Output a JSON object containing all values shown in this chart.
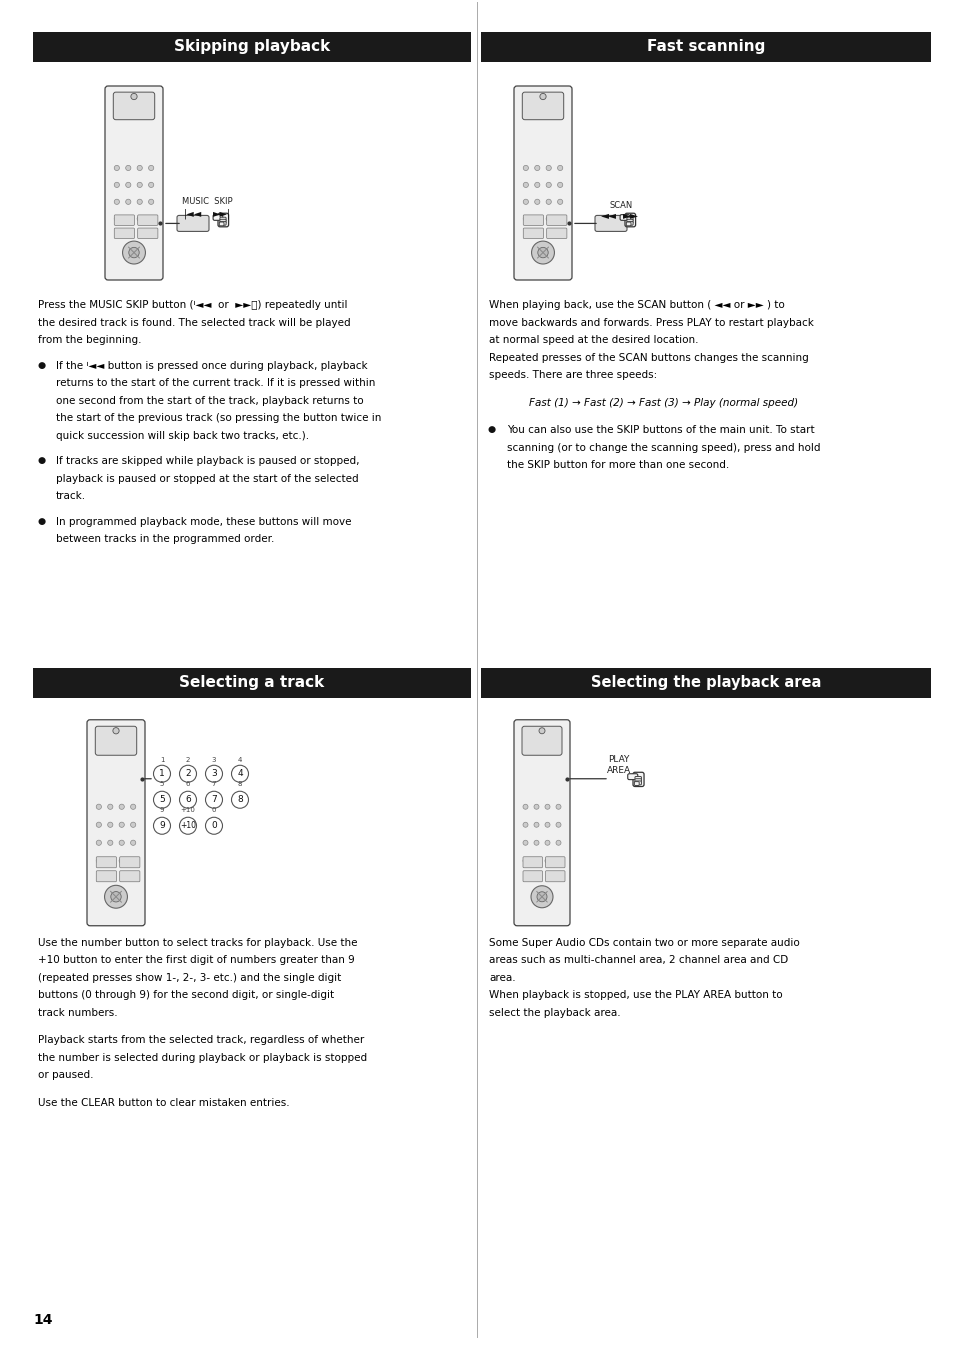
{
  "page_bg": "#ffffff",
  "header_bg": "#1a1a1a",
  "header_text_color": "#ffffff",
  "body_text_color": "#000000",
  "page_width": 9.54,
  "page_height": 13.49,
  "skip_body_para1": "Press the MUSIC SKIP button (ᑊ◄◄  or  ►►ᑋ) repeatedly until\nthe desired track is found. The selected track will be played\nfrom the beginning.",
  "skip_bullet1": "If the ᑊ◄◄ button is pressed once during playback, playback\nreturns to the start of the current track. If it is pressed within\none second from the start of the track, playback returns to\nthe start of the previous track (so pressing the button twice in\nquick succession will skip back two tracks, etc.).",
  "skip_bullet2": "If tracks are skipped while playback is paused or stopped,\nplayback is paused or stopped at the start of the selected\ntrack.",
  "skip_bullet3": "In programmed playback mode, these buttons will move\nbetween tracks in the programmed order.",
  "scan_body_para1": "When playing back, use the SCAN button ( ◄◄ or ►► ) to\nmove backwards and forwards. Press PLAY to restart playback\nat normal speed at the desired location.\nRepeated presses of the SCAN buttons changes the scanning\nspeeds. There are three speeds:",
  "scan_speeds": "Fast (1) → Fast (2) → Fast (3) → Play (normal speed)",
  "scan_bullet1": "You can also use the SKIP buttons of the main unit. To start\nscanning (or to change the scanning speed), press and hold\nthe SKIP button for more than one second.",
  "track_body_para1": "Use the number button to select tracks for playback. Use the\n+10 button to enter the first digit of numbers greater than 9\n(repeated presses show 1-, 2-, 3- etc.) and the single digit\nbuttons (0 through 9) for the second digit, or single-digit\ntrack numbers.",
  "track_body_para2": "Playback starts from the selected track, regardless of whether\nthe number is selected during playback or playback is stopped\nor paused.",
  "track_body_para3": "Use the CLEAR button to clear mistaken entries.",
  "area_body_para1": "Some Super Audio CDs contain two or more separate audio\nareas such as multi-channel area, 2 channel area and CD\narea.\nWhen playback is stopped, use the PLAY AREA button to\nselect the playback area.",
  "page_number": "14"
}
